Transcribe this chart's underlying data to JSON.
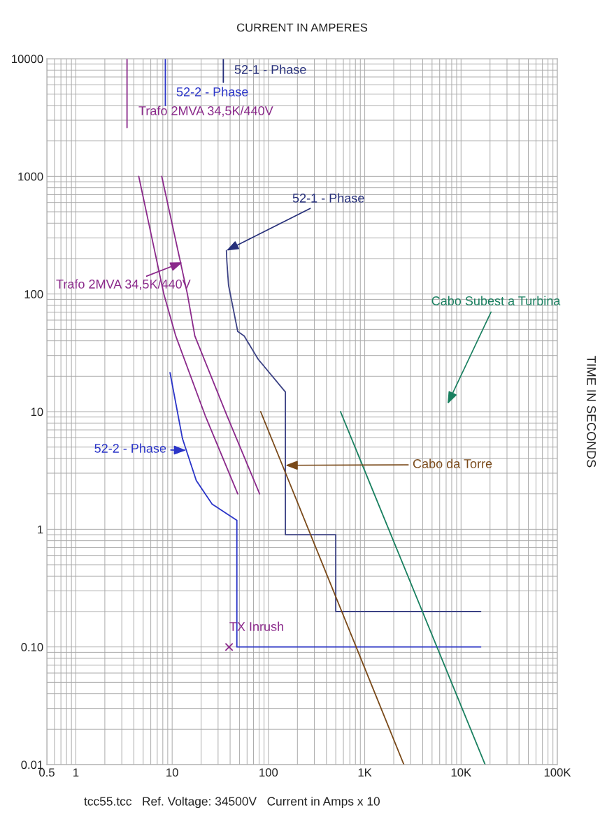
{
  "chart_data": {
    "type": "line",
    "xlabel": "CURRENT IN AMPERES",
    "ylabel": "TIME IN SECONDS",
    "log": "xy",
    "grid": true,
    "marker": "none",
    "line_style": "solid",
    "xlim": [
      0.5,
      100000
    ],
    "xticks": [
      0.5,
      1,
      10,
      100,
      {
        "value": 1000,
        "label": "1K"
      },
      {
        "value": 10000,
        "label": "10K"
      },
      {
        "value": 100000,
        "label": "100K"
      }
    ],
    "ylim": [
      0.01,
      10000
    ],
    "yticks": [
      {
        "value": 0.01,
        "label": "0.01"
      },
      {
        "value": 0.1,
        "label": "0.10"
      },
      1,
      10,
      100,
      1000,
      10000
    ],
    "series": [
      {
        "color": "#8b2a8b",
        "x": [
          3.4,
          3.4
        ],
        "values": [
          10000,
          2600
        ]
      },
      {
        "color": "#2b35c8",
        "x": [
          8.5,
          8.5
        ],
        "values": [
          10000,
          4000
        ]
      },
      {
        "color": "#262f7a",
        "x": [
          34,
          34
        ],
        "values": [
          10000,
          6300
        ]
      },
      {
        "color": "#8b2a8b",
        "x": [
          4.5,
          8.2,
          10.9,
          22,
          48
        ],
        "values": [
          1000,
          100,
          44,
          9.3,
          2
        ]
      },
      {
        "color": "#8b2a8b",
        "x": [
          7.8,
          14.4,
          17.2,
          37,
          81
        ],
        "values": [
          1000,
          100,
          44,
          9.3,
          2
        ]
      },
      {
        "color": "#2b35c8",
        "x": [
          9.5,
          12.8,
          17.8,
          26,
          47,
          47,
          16000
        ],
        "values": [
          21.5,
          5.9,
          2.6,
          1.64,
          1.19,
          0.1,
          0.1
        ]
      },
      {
        "color": "#3c4284",
        "x": [
          36.6,
          37,
          38.5,
          48,
          56,
          78,
          150,
          150,
          500,
          500,
          16000
        ],
        "values": [
          234,
          190,
          119,
          48,
          44,
          28,
          14.7,
          0.9,
          0.9,
          0.2,
          0.2
        ]
      },
      {
        "color": "#7a4a1a",
        "x": [
          83,
          2550
        ],
        "values": [
          10,
          0.01
        ]
      },
      {
        "color": "#1a8060",
        "x": [
          560,
          17800
        ],
        "values": [
          10,
          0.01
        ]
      },
      {
        "type": "scatter",
        "marker": "cross",
        "color": "#8b2a8b",
        "x": [
          39
        ],
        "values": [
          0.1
        ]
      }
    ],
    "annotations": [
      {
        "text": "52-1 - Phase",
        "x": 34,
        "y": 7900
      },
      {
        "text": "52-2 - Phase",
        "x": 8.5,
        "y": 5100
      },
      {
        "text": "Trafo 2MVA 34,5K/440V",
        "x": 3.4,
        "y": 3500
      },
      {
        "text": "52-1 - Phase",
        "x": 36.6,
        "y": 234
      },
      {
        "text": "Trafo 2MVA 34,5K/440V",
        "x": 12.8,
        "y": 186
      },
      {
        "text": "52-2 - Phase",
        "x": 14,
        "y": 4.7
      },
      {
        "text": "Cabo da Torre",
        "x": 150,
        "y": 3.5
      },
      "Cabo Subest a Turbina",
      {
        "text": "TX Inrush",
        "x": 39,
        "y": 0.1
      },
      "tcc55.tcc   Ref. Voltage: 34500V   Current in Amps x 10"
    ]
  }
}
